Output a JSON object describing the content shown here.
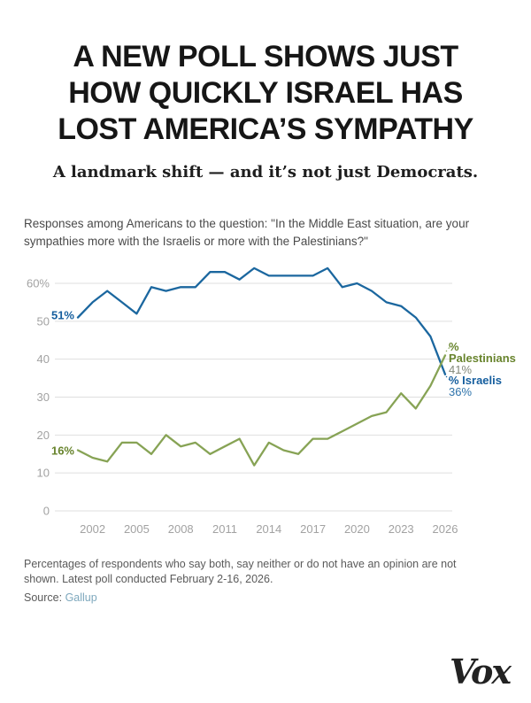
{
  "page": {
    "title_lines": [
      "A NEW POLL SHOWS JUST",
      "HOW QUICKLY ISRAEL HAS",
      "LOST AMERICA’S SYMPATHY"
    ],
    "subtitle": "A landmark shift — and it’s not just Democrats.",
    "question_lines": [
      "Responses among Americans to the question: \"In the Middle East situation, are your",
      "sympathies more with the Israelis or more with the Palestinians?\""
    ],
    "footnote_lines": [
      "Percentages of respondents who say both, say neither or do not have an opinion are not",
      "shown. Latest poll conducted February 2-16, 2026."
    ],
    "source_label": "Source:",
    "source_name": "Gallup",
    "brand": "Vox"
  },
  "chart_data": {
    "type": "line",
    "title": "Responses among Americans to the question: \"In the Middle East situation, are your sympathies more with the Israelis or more with the Palestinians?\"",
    "x": [
      2001,
      2002,
      2003,
      2004,
      2005,
      2006,
      2007,
      2008,
      2009,
      2010,
      2011,
      2012,
      2013,
      2014,
      2015,
      2016,
      2017,
      2018,
      2019,
      2020,
      2021,
      2022,
      2023,
      2024,
      2025,
      2026
    ],
    "series": [
      {
        "name": "% Israelis",
        "name_lines": [
          "% Israelis"
        ],
        "values": [
          51,
          55,
          58,
          55,
          52,
          59,
          58,
          59,
          59,
          63,
          63,
          61,
          64,
          62,
          62,
          62,
          62,
          64,
          59,
          60,
          58,
          55,
          54,
          51,
          46,
          36
        ],
        "line_color": "#1b679f",
        "label_color": "#155e9e",
        "value_color": "#2e73ab",
        "start_label": "51%",
        "end_label": "36%",
        "end_label_side": "below"
      },
      {
        "name": "% Palestinians",
        "name_lines": [
          "%",
          "Palestinians"
        ],
        "values": [
          16,
          14,
          13,
          18,
          18,
          15,
          20,
          17,
          18,
          15,
          17,
          19,
          12,
          18,
          16,
          15,
          19,
          19,
          21,
          23,
          25,
          26,
          31,
          27,
          33,
          41
        ],
        "line_color": "#87a355",
        "label_color": "#68842d",
        "value_color": "#83887a",
        "start_label": "16%",
        "end_label": "41%",
        "end_label_side": "above"
      }
    ],
    "xticks": [
      2002,
      2005,
      2008,
      2011,
      2014,
      2017,
      2020,
      2023,
      2026
    ],
    "yticks": [
      0,
      10,
      20,
      30,
      40,
      50,
      60
    ],
    "ytick_labels": [
      "0",
      "10",
      "20",
      "30",
      "40",
      "50",
      "60%"
    ],
    "ylim": [
      0,
      66
    ],
    "xlabel": "",
    "ylabel": "",
    "grid": true,
    "legend_position": "right-end-labels",
    "grid_color": "#dfdfdf",
    "tick_color": "#a2a2a2"
  }
}
